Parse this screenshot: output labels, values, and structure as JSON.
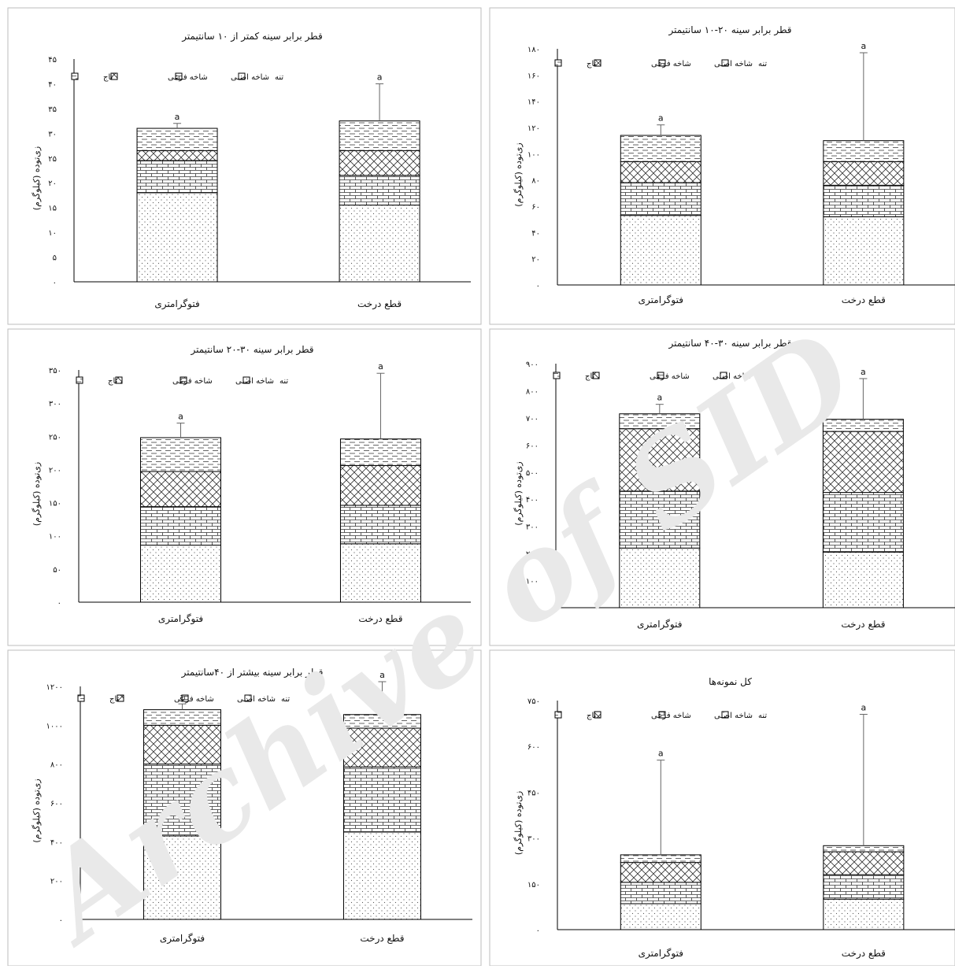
{
  "watermark": "Archive of SID",
  "chart_data": [
    {
      "type": "bar",
      "stacked": true,
      "title": "قطر برابر سینه کمتر از ۱۰ سانتیمتر",
      "ylabel": "زی‌توده (کیلوگرم)",
      "categories": [
        "فتوگرامتری",
        "قطع درخت"
      ],
      "ylim": [
        0,
        45
      ],
      "yticks": [
        0,
        5,
        10,
        15,
        20,
        25,
        30,
        35,
        40,
        45
      ],
      "ytick_labels": [
        "۰",
        "۵",
        "۱۰",
        "۱۵",
        "۲۰",
        "۲۵",
        "۳۰",
        "۳۵",
        "۴۰",
        "۴۵"
      ],
      "series": [
        {
          "name": "تنه",
          "pattern": "dots",
          "values": [
            18,
            15.5
          ]
        },
        {
          "name": "شاخه اصلی",
          "pattern": "bricks",
          "values": [
            6.5,
            6
          ]
        },
        {
          "name": "شاخه فرعی",
          "pattern": "cross",
          "values": [
            2,
            5
          ]
        },
        {
          "name": "تاج",
          "pattern": "dashes",
          "values": [
            4.5,
            6
          ]
        }
      ],
      "error_top": [
        32,
        40
      ],
      "sig_labels": [
        "a",
        "a"
      ],
      "legend": "top-left"
    },
    {
      "type": "bar",
      "stacked": true,
      "title": "قطر برابر سینه ۲۰-۱۰ سانتیمتر",
      "ylabel": "زی‌توده (کیلوگرم)",
      "categories": [
        "فتوگرامتری",
        "قطع درخت"
      ],
      "ylim": [
        0,
        180
      ],
      "yticks": [
        0,
        20,
        40,
        60,
        80,
        100,
        120,
        140,
        160,
        180
      ],
      "ytick_labels": [
        "۰",
        "۲۰",
        "۴۰",
        "۶۰",
        "۸۰",
        "۱۰۰",
        "۱۲۰",
        "۱۴۰",
        "۱۶۰",
        "۱۸۰"
      ],
      "series": [
        {
          "name": "تنه",
          "pattern": "dots",
          "values": [
            53,
            52
          ]
        },
        {
          "name": "شاخه اصلی",
          "pattern": "bricks",
          "values": [
            25,
            24
          ]
        },
        {
          "name": "شاخه فرعی",
          "pattern": "cross",
          "values": [
            16,
            18
          ]
        },
        {
          "name": "تاج",
          "pattern": "dashes",
          "values": [
            20,
            16
          ]
        }
      ],
      "error_top": [
        122,
        177
      ],
      "sig_labels": [
        "a",
        "a"
      ],
      "legend": "top-left"
    },
    {
      "type": "bar",
      "stacked": true,
      "title": "قطر برابر سینه ۳۰-۲۰ سانتیمتر",
      "ylabel": "زی‌توده (کیلوگرم)",
      "categories": [
        "فتوگرامتری",
        "قطع درخت"
      ],
      "ylim": [
        0,
        350
      ],
      "yticks": [
        0,
        50,
        100,
        150,
        200,
        250,
        300,
        350
      ],
      "ytick_labels": [
        "۰",
        "۵۰",
        "۱۰۰",
        "۱۵۰",
        "۲۰۰",
        "۲۵۰",
        "۳۰۰",
        "۳۵۰"
      ],
      "series": [
        {
          "name": "تنه",
          "pattern": "dots",
          "values": [
            86,
            88
          ]
        },
        {
          "name": "شاخه اصلی",
          "pattern": "bricks",
          "values": [
            58,
            58
          ]
        },
        {
          "name": "شاخه فرعی",
          "pattern": "cross",
          "values": [
            53,
            60
          ]
        },
        {
          "name": "تاج",
          "pattern": "dashes",
          "values": [
            51,
            40
          ]
        }
      ],
      "error_top": [
        270,
        345
      ],
      "sig_labels": [
        "a",
        "a"
      ],
      "legend": "top-left"
    },
    {
      "type": "bar",
      "stacked": true,
      "title": "قطر برابر سینه ۳۰-۴۰ سانتیمتر",
      "ylabel": "زی‌توده (کیلوگرم)",
      "categories": [
        "فتوگرامتری",
        "قطع درخت"
      ],
      "ylim": [
        0,
        900
      ],
      "yticks": [
        0,
        100,
        200,
        300,
        400,
        500,
        600,
        700,
        800,
        900
      ],
      "ytick_labels": [
        "۰",
        "۱۰۰",
        "۲۰۰",
        "۳۰۰",
        "۴۰۰",
        "۵۰۰",
        "۶۰۰",
        "۷۰۰",
        "۸۰۰",
        "۹۰۰"
      ],
      "series": [
        {
          "name": "تنه",
          "pattern": "dots",
          "values": [
            220,
            205
          ]
        },
        {
          "name": "شاخه اصلی",
          "pattern": "bricks",
          "values": [
            210,
            220
          ]
        },
        {
          "name": "شاخه فرعی",
          "pattern": "cross",
          "values": [
            230,
            225
          ]
        },
        {
          "name": "تاج",
          "pattern": "dashes",
          "values": [
            55,
            45
          ]
        }
      ],
      "error_top": [
        750,
        845
      ],
      "sig_labels": [
        "a",
        "a"
      ],
      "legend": "top-left"
    },
    {
      "type": "bar",
      "stacked": true,
      "title": "قطر برابر سینه بیشتر از ۴۰سانتیمتر",
      "ylabel": "زی‌توده (کیلوگرم)",
      "categories": [
        "فتوگرامتری",
        "قطع درخت"
      ],
      "ylim": [
        0,
        1200
      ],
      "yticks": [
        0,
        200,
        400,
        600,
        800,
        1000,
        1200
      ],
      "ytick_labels": [
        "۰",
        "۲۰۰",
        "۴۰۰",
        "۶۰۰",
        "۸۰۰",
        "۱۰۰۰",
        "۱۲۰۰"
      ],
      "series": [
        {
          "name": "تنه",
          "pattern": "dots",
          "values": [
            430,
            450
          ]
        },
        {
          "name": "شاخه اصلی",
          "pattern": "bricks",
          "values": [
            370,
            335
          ]
        },
        {
          "name": "شاخه فرعی",
          "pattern": "cross",
          "values": [
            200,
            200
          ]
        },
        {
          "name": "تاج",
          "pattern": "dashes",
          "values": [
            80,
            70
          ]
        }
      ],
      "error_top": [
        1110,
        1235
      ],
      "sig_labels": [
        "a",
        "a"
      ],
      "legend": "top-left"
    },
    {
      "type": "bar",
      "stacked": true,
      "title": "کل نمونه‌ها",
      "ylabel": "زی‌توده (کیلوگرم)",
      "categories": [
        "فتوگرامتری",
        "قطع درخت"
      ],
      "ylim": [
        0,
        750
      ],
      "yticks": [
        0,
        150,
        300,
        450,
        600,
        750
      ],
      "ytick_labels": [
        "۰",
        "۱۵۰",
        "۳۰۰",
        "۴۵۰",
        "۶۰۰",
        "۷۵۰"
      ],
      "series": [
        {
          "name": "تنه",
          "pattern": "dots",
          "values": [
            85,
            100
          ]
        },
        {
          "name": "شاخه اصلی",
          "pattern": "bricks",
          "values": [
            70,
            80
          ]
        },
        {
          "name": "شاخه فرعی",
          "pattern": "cross",
          "values": [
            65,
            75
          ]
        },
        {
          "name": "تاج",
          "pattern": "dashes",
          "values": [
            25,
            20
          ]
        }
      ],
      "error_top": [
        555,
        705
      ],
      "sig_labels": [
        "a",
        "a"
      ],
      "legend": "top-left"
    }
  ]
}
